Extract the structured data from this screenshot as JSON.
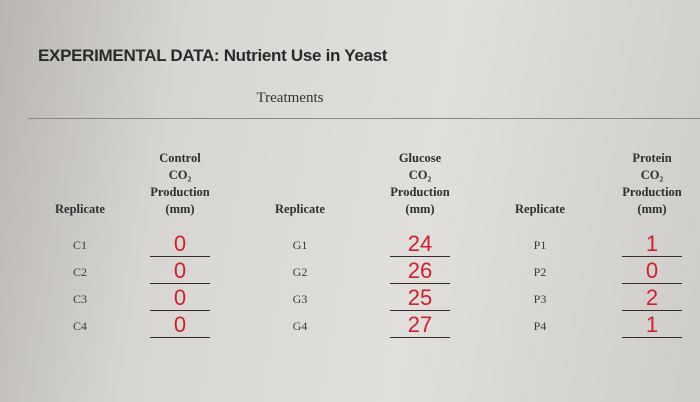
{
  "title": "EXPERIMENTAL DATA: Nutrient Use in Yeast",
  "treatments_label": "Treatments",
  "table": {
    "header": [
      [
        "Replicate"
      ],
      [
        "Control",
        "CO₂",
        "Production",
        "(mm)"
      ],
      [
        "Replicate"
      ],
      [
        "Glucose",
        "CO₂",
        "Production",
        "(mm)"
      ],
      [
        "Replicate"
      ],
      [
        "Protein",
        "CO₂",
        "Production",
        "(mm)"
      ]
    ],
    "rows": [
      [
        "C1",
        0,
        "G1",
        24,
        "P1",
        1
      ],
      [
        "C2",
        0,
        "G2",
        26,
        "P2",
        0
      ],
      [
        "C3",
        0,
        "G3",
        25,
        "P3",
        2
      ],
      [
        "C4",
        0,
        "G4",
        27,
        "P4",
        1
      ]
    ]
  }
}
